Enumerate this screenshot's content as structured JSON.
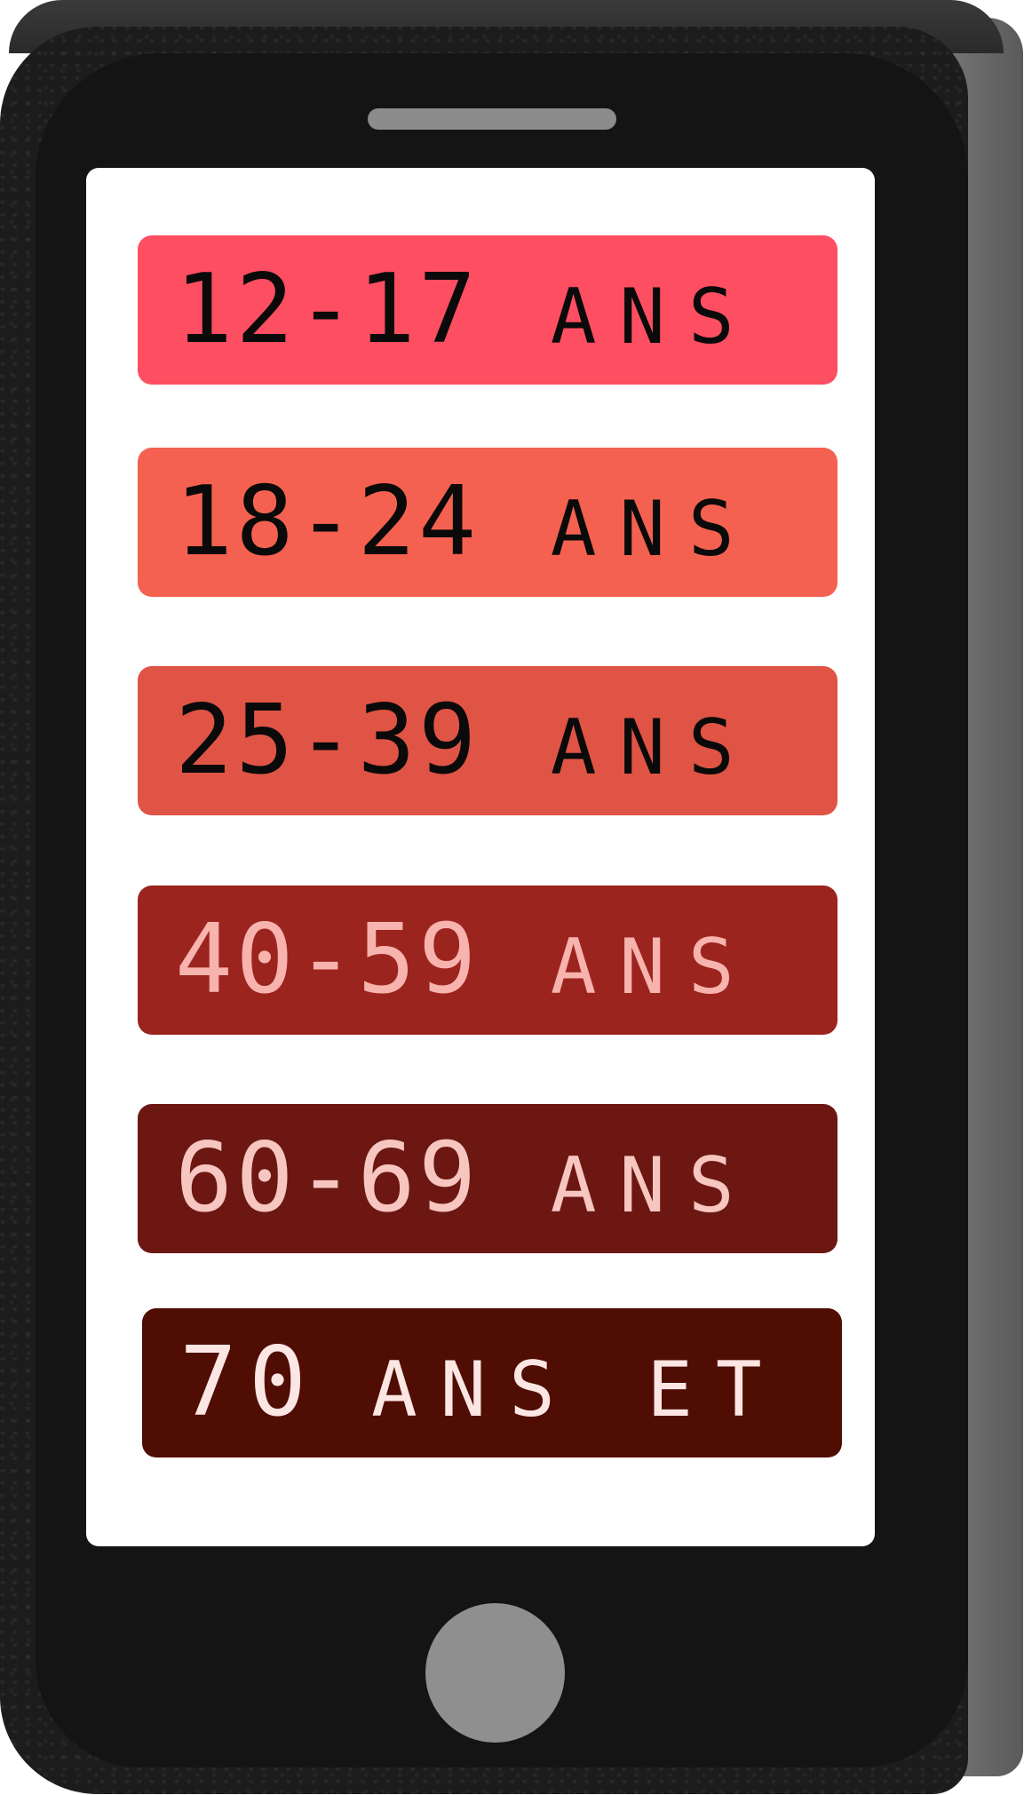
{
  "colors": {
    "phone_body": "#1c1c1c",
    "screen": "#ffffff",
    "speaker": "#8c8c8c",
    "home_button": "#8f8f8f"
  },
  "age_groups": [
    {
      "range": "12-17",
      "unit": "ANS",
      "bg": "#fe4e62",
      "fg": "#0a0a0a"
    },
    {
      "range": "18-24",
      "unit": "ANS",
      "bg": "#f46150",
      "fg": "#0a0a0a"
    },
    {
      "range": "25-39",
      "unit": "ANS",
      "bg": "#e05445",
      "fg": "#0a0a0a"
    },
    {
      "range": "40-59",
      "unit": "ANS",
      "bg": "#9c241e",
      "fg": "#f7b3ad"
    },
    {
      "range": "60-69",
      "unit": "ANS",
      "bg": "#6c1712",
      "fg": "#f7c6c1"
    },
    {
      "range": "70",
      "unit": "ANS ET +",
      "bg": "#4f0d03",
      "fg": "#fbe6e4"
    }
  ]
}
